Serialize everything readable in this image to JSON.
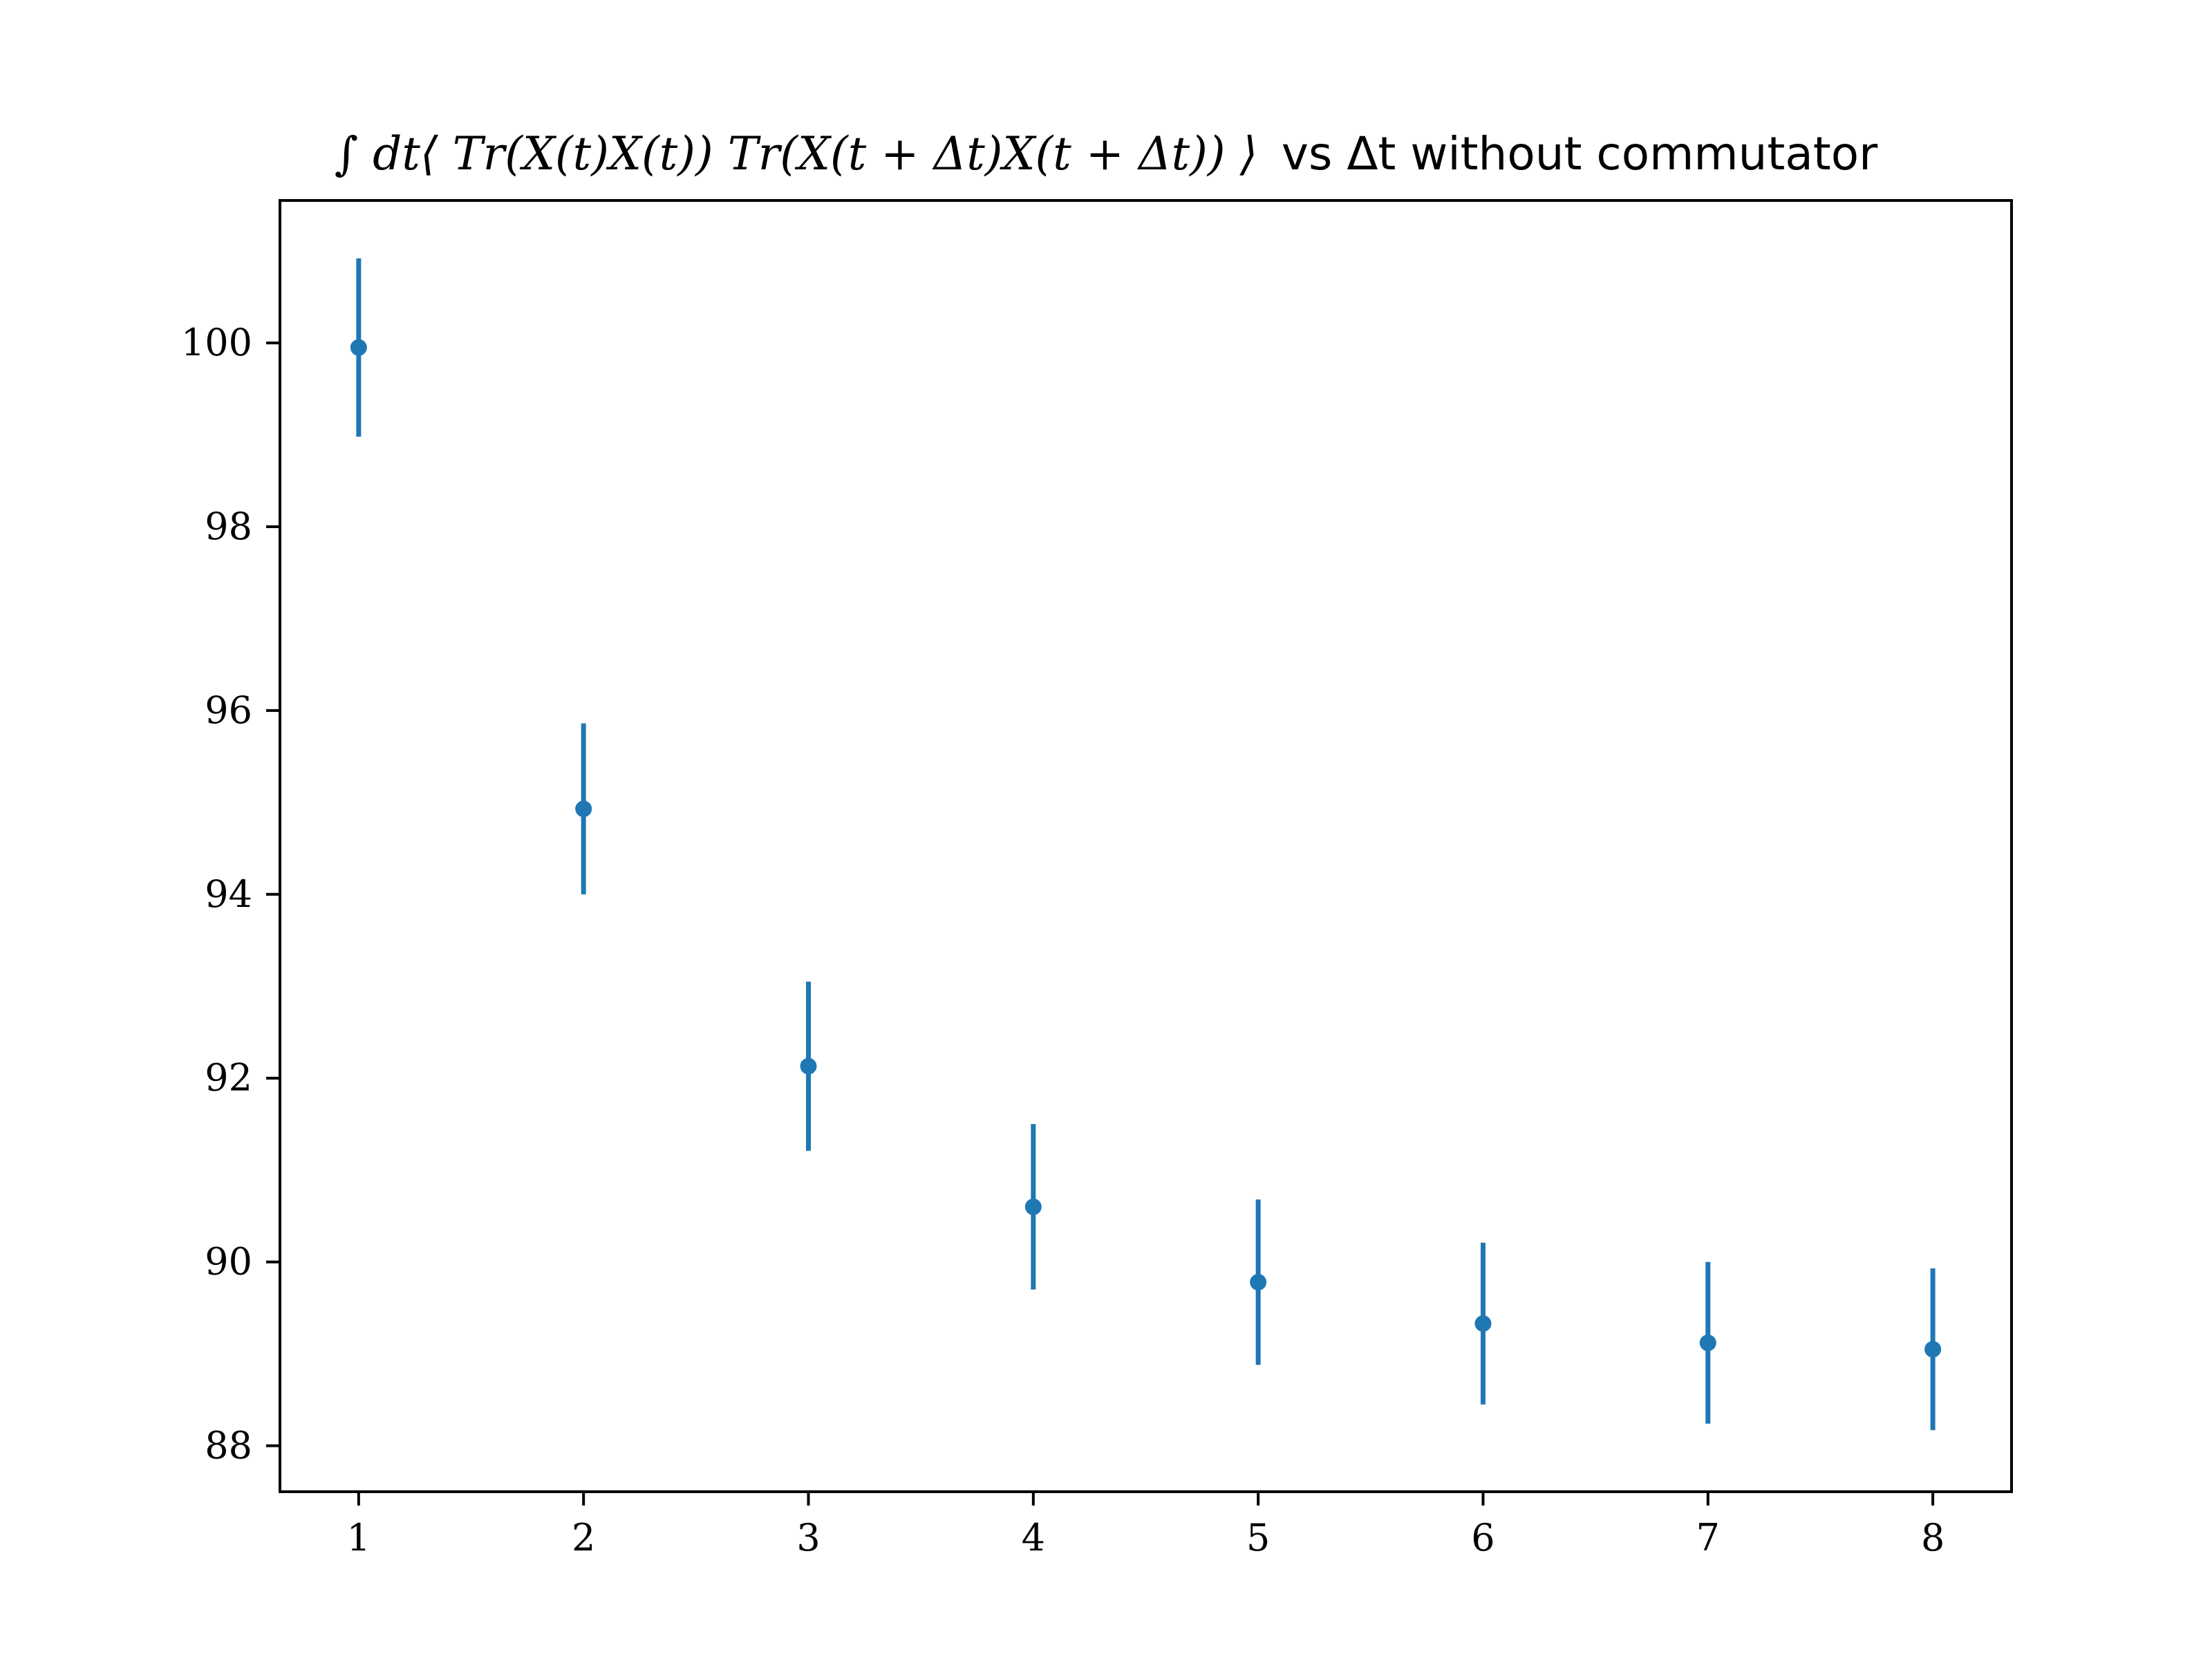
{
  "title": {
    "math_part": "∫ dt⟨ Tr(X(t)X(t)) Tr(X(t + Δt)X(t + Δt)) ⟩",
    "text_part": "vs Δt without commutator"
  },
  "colors": {
    "series": "#1f77b4",
    "axes": "#000000",
    "background": "#ffffff"
  },
  "chart_data": {
    "type": "scatter",
    "title": "∫ dt⟨ Tr(X(t)X(t)) Tr(X(t + Δt)X(t + Δt)) ⟩ vs Δt without commutator",
    "xlabel": "",
    "ylabel": "",
    "x_ticks": [
      "1",
      "2",
      "3",
      "4",
      "5",
      "6",
      "7",
      "8"
    ],
    "y_ticks": [
      "88",
      "90",
      "92",
      "94",
      "96",
      "98",
      "100"
    ],
    "xlim": [
      0.65,
      8.35
    ],
    "ylim": [
      87.5,
      101.55
    ],
    "grid": false,
    "legend": "none",
    "series": [
      {
        "x": [
          1,
          2,
          3,
          4,
          5,
          6,
          7,
          8
        ],
        "y": [
          99.95,
          94.93,
          92.13,
          90.6,
          89.78,
          89.33,
          89.12,
          89.05
        ],
        "err": [
          0.97,
          0.93,
          0.92,
          0.9,
          0.9,
          0.88,
          0.88,
          0.88
        ]
      }
    ]
  }
}
